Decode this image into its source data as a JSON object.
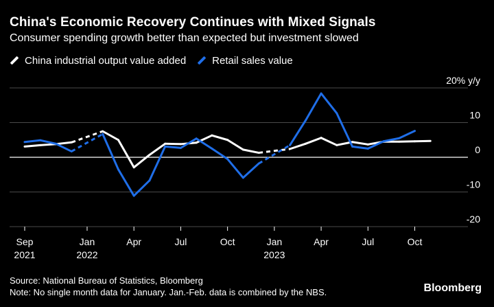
{
  "chart_data": {
    "type": "line",
    "title": "China's Economic Recovery Continues with Mixed Signals",
    "subtitle": "Consumer spending growth better than expected but investment slowed",
    "unit_label": "20% y/y",
    "ylim": [
      -20,
      20
    ],
    "yticks": [
      {
        "value": 20,
        "label": "20% y/y"
      },
      {
        "value": 10,
        "label": "10"
      },
      {
        "value": 0,
        "label": "0"
      },
      {
        "value": -10,
        "label": "-10"
      },
      {
        "value": -20,
        "label": "-20"
      }
    ],
    "x_range": [
      "2021-09",
      "2023-12"
    ],
    "xticks": [
      {
        "month": "2021-09",
        "label": "Sep",
        "year": "2021"
      },
      {
        "month": "2022-01",
        "label": "Jan",
        "year": "2022"
      },
      {
        "month": "2022-04",
        "label": "Apr",
        "year": ""
      },
      {
        "month": "2022-07",
        "label": "Jul",
        "year": ""
      },
      {
        "month": "2022-10",
        "label": "Oct",
        "year": ""
      },
      {
        "month": "2023-01",
        "label": "Jan",
        "year": "2023"
      },
      {
        "month": "2023-04",
        "label": "Apr",
        "year": ""
      },
      {
        "month": "2023-07",
        "label": "Jul",
        "year": ""
      },
      {
        "month": "2023-10",
        "label": "Oct",
        "year": ""
      }
    ],
    "grid": "horizontal",
    "legend_position": "top-left",
    "series": [
      {
        "name": "China industrial output value added",
        "color": "#ffffff",
        "points": [
          {
            "month": "2021-09",
            "value": 3.1
          },
          {
            "month": "2021-10",
            "value": 3.5
          },
          {
            "month": "2021-11",
            "value": 3.8
          },
          {
            "month": "2021-12",
            "value": 4.3
          },
          {
            "month": "2022-02",
            "value": 7.5
          },
          {
            "month": "2022-03",
            "value": 5.0
          },
          {
            "month": "2022-04",
            "value": -2.9
          },
          {
            "month": "2022-05",
            "value": 0.7
          },
          {
            "month": "2022-06",
            "value": 3.9
          },
          {
            "month": "2022-07",
            "value": 3.8
          },
          {
            "month": "2022-08",
            "value": 4.2
          },
          {
            "month": "2022-09",
            "value": 6.3
          },
          {
            "month": "2022-10",
            "value": 5.0
          },
          {
            "month": "2022-11",
            "value": 2.2
          },
          {
            "month": "2022-12",
            "value": 1.3
          },
          {
            "month": "2023-02",
            "value": 2.4
          },
          {
            "month": "2023-03",
            "value": 3.9
          },
          {
            "month": "2023-04",
            "value": 5.6
          },
          {
            "month": "2023-05",
            "value": 3.5
          },
          {
            "month": "2023-06",
            "value": 4.4
          },
          {
            "month": "2023-07",
            "value": 3.7
          },
          {
            "month": "2023-08",
            "value": 4.5
          },
          {
            "month": "2023-09",
            "value": 4.5
          },
          {
            "month": "2023-10",
            "value": 4.6
          },
          {
            "month": "2023-11",
            "value": 4.7
          }
        ]
      },
      {
        "name": "Retail sales value",
        "color": "#1f6ee8",
        "points": [
          {
            "month": "2021-09",
            "value": 4.4
          },
          {
            "month": "2021-10",
            "value": 4.9
          },
          {
            "month": "2021-11",
            "value": 3.9
          },
          {
            "month": "2021-12",
            "value": 1.7
          },
          {
            "month": "2022-02",
            "value": 6.7
          },
          {
            "month": "2022-03",
            "value": -3.5
          },
          {
            "month": "2022-04",
            "value": -11.1
          },
          {
            "month": "2022-05",
            "value": -6.7
          },
          {
            "month": "2022-06",
            "value": 3.1
          },
          {
            "month": "2022-07",
            "value": 2.7
          },
          {
            "month": "2022-08",
            "value": 5.4
          },
          {
            "month": "2022-09",
            "value": 2.5
          },
          {
            "month": "2022-10",
            "value": -0.5
          },
          {
            "month": "2022-11",
            "value": -5.9
          },
          {
            "month": "2022-12",
            "value": -1.8
          },
          {
            "month": "2023-02",
            "value": 3.5
          },
          {
            "month": "2023-03",
            "value": 10.6
          },
          {
            "month": "2023-04",
            "value": 18.4
          },
          {
            "month": "2023-05",
            "value": 12.7
          },
          {
            "month": "2023-06",
            "value": 3.1
          },
          {
            "month": "2023-07",
            "value": 2.5
          },
          {
            "month": "2023-08",
            "value": 4.6
          },
          {
            "month": "2023-09",
            "value": 5.5
          },
          {
            "month": "2023-10",
            "value": 7.6
          }
        ]
      }
    ]
  },
  "legend": {
    "items": [
      {
        "label": "China industrial output value added",
        "color": "#ffffff"
      },
      {
        "label": "Retail sales value",
        "color": "#1f6ee8"
      }
    ]
  },
  "footer": {
    "source": "Source: National Bureau of Statistics, Bloomberg",
    "note": "Note: No single month data for January. Jan.-Feb. data is combined by the NBS."
  },
  "brand": "Bloomberg"
}
